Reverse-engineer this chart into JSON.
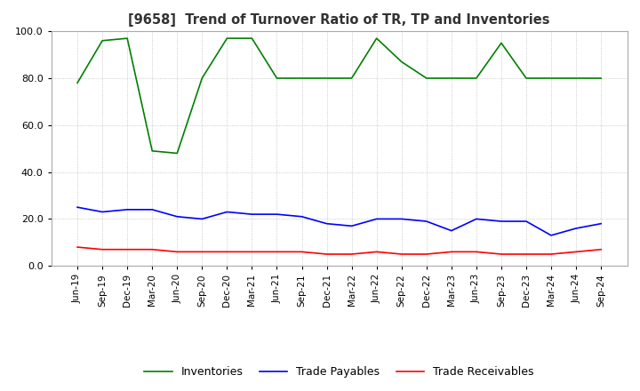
{
  "title": "[9658]  Trend of Turnover Ratio of TR, TP and Inventories",
  "xlabels": [
    "Jun-19",
    "Sep-19",
    "Dec-19",
    "Mar-20",
    "Jun-20",
    "Sep-20",
    "Dec-20",
    "Mar-21",
    "Jun-21",
    "Sep-21",
    "Dec-21",
    "Mar-22",
    "Jun-22",
    "Sep-22",
    "Dec-22",
    "Mar-23",
    "Jun-23",
    "Sep-23",
    "Dec-23",
    "Mar-24",
    "Jun-24",
    "Sep-24"
  ],
  "ylim": [
    0,
    100
  ],
  "yticks": [
    0,
    20,
    40,
    60,
    80,
    100
  ],
  "trade_receivables": [
    8,
    7,
    7,
    7,
    6,
    6,
    6,
    6,
    6,
    6,
    5,
    5,
    6,
    5,
    5,
    6,
    6,
    5,
    5,
    5,
    6,
    7
  ],
  "trade_payables": [
    25,
    23,
    24,
    24,
    21,
    20,
    23,
    22,
    22,
    21,
    18,
    17,
    20,
    20,
    19,
    15,
    20,
    19,
    19,
    13,
    16,
    18
  ],
  "inventories": [
    78,
    96,
    97,
    49,
    48,
    80,
    97,
    97,
    80,
    80,
    80,
    80,
    97,
    87,
    80,
    80,
    80,
    95,
    80,
    80,
    80,
    80
  ],
  "tr_color": "#ff0000",
  "tp_color": "#0000ff",
  "inv_color": "#008000",
  "legend_labels": [
    "Trade Receivables",
    "Trade Payables",
    "Inventories"
  ],
  "background_color": "#ffffff",
  "grid_color": "#b0b0b0"
}
